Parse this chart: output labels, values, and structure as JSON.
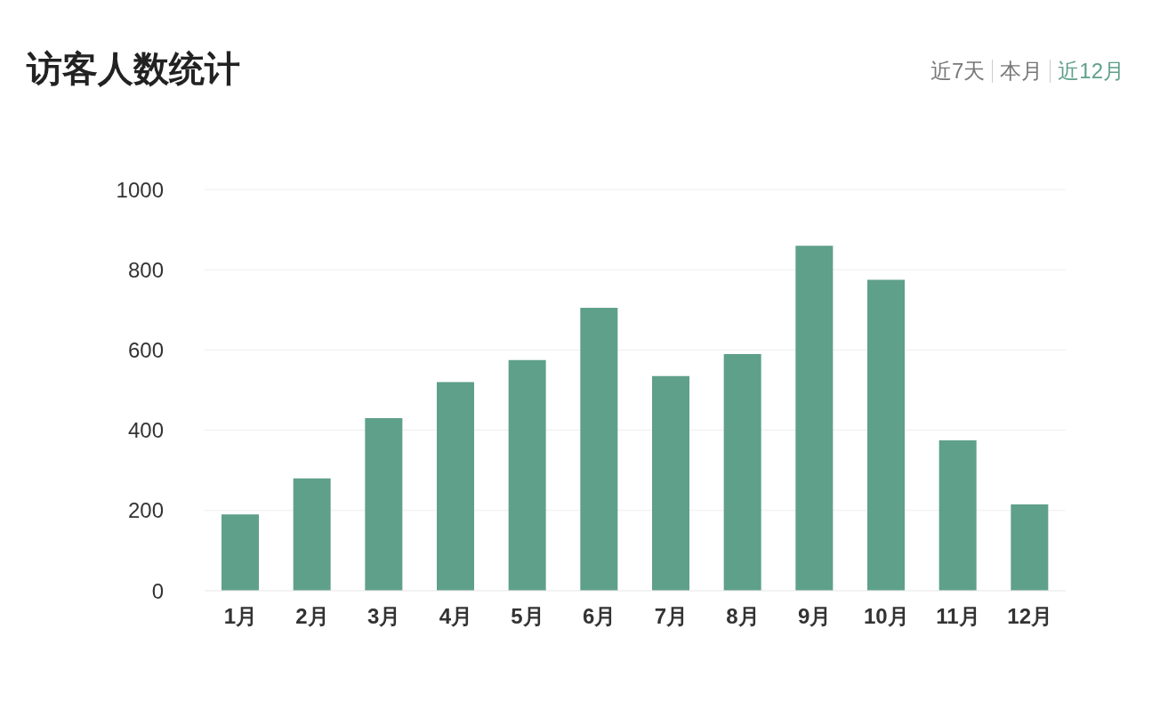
{
  "chart_data": {
    "type": "bar",
    "title": "访客人数统计",
    "annotations": [
      "近7天",
      "本月",
      "近12月"
    ],
    "categories": [
      "1月",
      "2月",
      "3月",
      "4月",
      "5月",
      "6月",
      "7月",
      "8月",
      "9月",
      "10月",
      "11月",
      "12月"
    ],
    "values": [
      190,
      280,
      430,
      520,
      575,
      705,
      535,
      590,
      860,
      775,
      375,
      215
    ],
    "color": "#5fa08a",
    "ylim": [
      0,
      1000
    ],
    "yticks": [
      0,
      200,
      400,
      600,
      800,
      1000
    ],
    "grid": "y"
  }
}
